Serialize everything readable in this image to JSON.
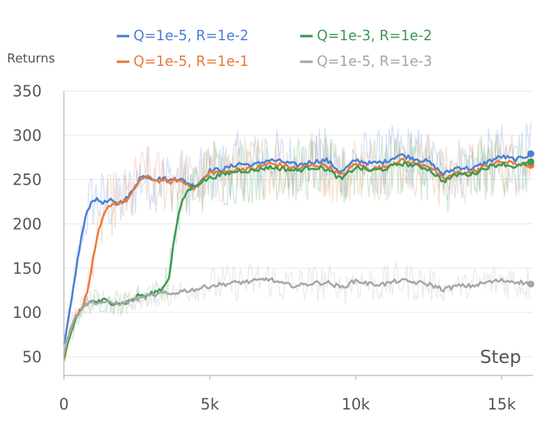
{
  "chart_data": {
    "type": "line",
    "title": "",
    "xlabel": "Step",
    "ylabel": "Returns",
    "xlim": [
      0,
      16000
    ],
    "ylim": [
      40,
      350
    ],
    "x_ticks": [
      0,
      5000,
      10000,
      15000
    ],
    "x_tick_labels": [
      "0",
      "5k",
      "10k",
      "15k"
    ],
    "y_ticks": [
      50,
      100,
      150,
      200,
      250,
      300,
      350
    ],
    "y_tick_labels": [
      "50",
      "100",
      "150",
      "200",
      "250",
      "300",
      "350"
    ],
    "grid": true,
    "legend_position": "top",
    "series": [
      {
        "name": "Q=1e-5, R=1e-2",
        "color": "#4a7fd4",
        "x": [
          0,
          200,
          400,
          600,
          800,
          1000,
          1200,
          1400,
          1600,
          1800,
          2000,
          2200,
          2400,
          2600,
          2800,
          3000,
          3200,
          3400,
          3600,
          3800,
          4000,
          4500,
          5000,
          5500,
          6000,
          6500,
          7000,
          7500,
          8000,
          8500,
          9000,
          9500,
          10000,
          10500,
          11000,
          11500,
          12000,
          12500,
          13000,
          13500,
          14000,
          14500,
          15000,
          15500,
          16000
        ],
        "y": [
          62,
          100,
          145,
          185,
          215,
          228,
          226,
          224,
          226,
          222,
          226,
          230,
          240,
          252,
          254,
          252,
          250,
          252,
          248,
          252,
          250,
          242,
          260,
          262,
          268,
          266,
          272,
          270,
          266,
          270,
          272,
          258,
          272,
          268,
          270,
          278,
          274,
          270,
          256,
          264,
          262,
          270,
          276,
          272,
          279
        ]
      },
      {
        "name": "Q=1e-5, R=1e-1",
        "color": "#e87a3a",
        "x": [
          0,
          200,
          400,
          600,
          800,
          1000,
          1200,
          1400,
          1600,
          1800,
          2000,
          2200,
          2400,
          2600,
          2800,
          3000,
          3200,
          3400,
          3600,
          3800,
          4000,
          4500,
          5000,
          5500,
          6000,
          6500,
          7000,
          7500,
          8000,
          8500,
          9000,
          9500,
          10000,
          10500,
          11000,
          11500,
          12000,
          12500,
          13000,
          13500,
          14000,
          14500,
          15000,
          15500,
          16000
        ],
        "y": [
          45,
          80,
          95,
          105,
          122,
          160,
          192,
          212,
          222,
          224,
          224,
          228,
          238,
          250,
          252,
          252,
          248,
          250,
          246,
          250,
          248,
          240,
          258,
          258,
          262,
          262,
          268,
          266,
          262,
          266,
          266,
          254,
          268,
          262,
          264,
          272,
          268,
          266,
          250,
          258,
          258,
          266,
          270,
          268,
          266
        ]
      },
      {
        "name": "Q=1e-3, R=1e-2",
        "color": "#3d9a50",
        "x": [
          0,
          200,
          400,
          600,
          800,
          1000,
          1200,
          1400,
          1600,
          1800,
          2000,
          2200,
          2400,
          2600,
          2800,
          3000,
          3200,
          3400,
          3600,
          3800,
          4000,
          4200,
          4500,
          5000,
          5500,
          6000,
          6500,
          7000,
          7500,
          8000,
          8500,
          9000,
          9500,
          10000,
          10500,
          11000,
          11500,
          12000,
          12500,
          13000,
          13500,
          14000,
          14500,
          15000,
          15500,
          16000
        ],
        "y": [
          50,
          70,
          92,
          104,
          110,
          113,
          112,
          114,
          110,
          112,
          110,
          112,
          116,
          120,
          118,
          121,
          124,
          128,
          140,
          188,
          220,
          236,
          244,
          252,
          256,
          260,
          260,
          264,
          262,
          260,
          264,
          262,
          250,
          264,
          260,
          262,
          268,
          266,
          262,
          248,
          256,
          256,
          264,
          268,
          264,
          270
        ]
      },
      {
        "name": "Q=1e-5, R=1e-3",
        "color": "#a3a8a6",
        "x": [
          0,
          200,
          400,
          600,
          800,
          1000,
          1200,
          1400,
          1600,
          1800,
          2000,
          2200,
          2400,
          2600,
          2800,
          3000,
          3200,
          3400,
          3600,
          3800,
          4000,
          4500,
          5000,
          5500,
          6000,
          6500,
          7000,
          7500,
          8000,
          8500,
          9000,
          9500,
          10000,
          10500,
          11000,
          11500,
          12000,
          12500,
          13000,
          13500,
          14000,
          14500,
          15000,
          15500,
          16000
        ],
        "y": [
          55,
          78,
          95,
          105,
          110,
          112,
          111,
          112,
          110,
          111,
          110,
          112,
          114,
          116,
          117,
          119,
          120,
          122,
          120,
          122,
          124,
          126,
          130,
          132,
          134,
          135,
          138,
          132,
          130,
          133,
          134,
          128,
          136,
          132,
          132,
          136,
          134,
          132,
          126,
          130,
          130,
          134,
          136,
          135,
          132
        ]
      }
    ]
  }
}
